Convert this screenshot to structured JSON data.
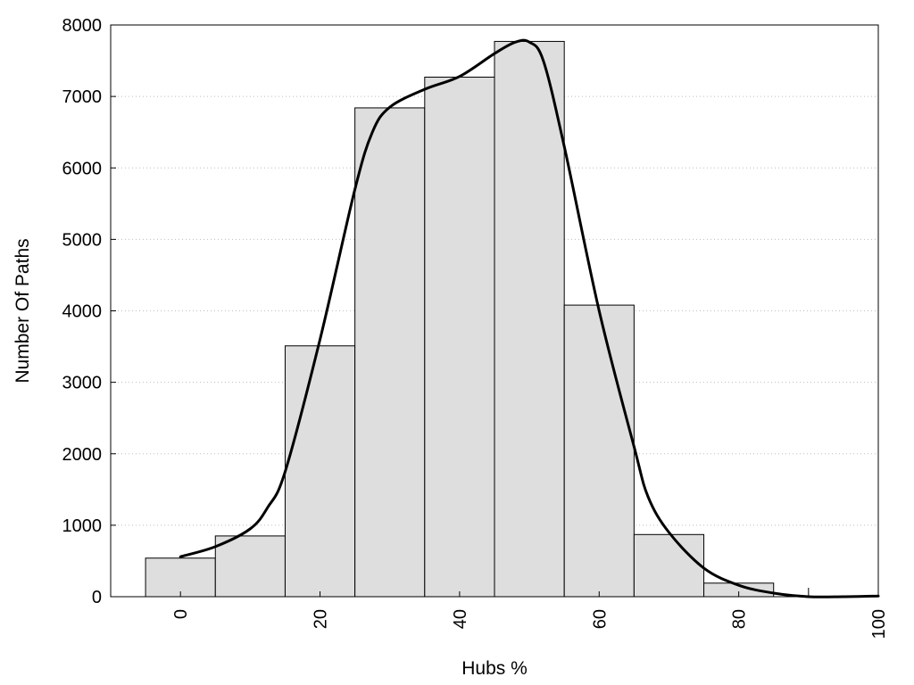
{
  "chart_data": {
    "type": "bar",
    "title": "",
    "xlabel": "Hubs %",
    "ylabel": "Number Of Paths",
    "xlim": [
      -10,
      100
    ],
    "ylim": [
      0,
      8000
    ],
    "x_ticks": [
      0,
      20,
      40,
      60,
      80,
      100
    ],
    "y_ticks": [
      0,
      1000,
      2000,
      3000,
      4000,
      5000,
      6000,
      7000,
      8000
    ],
    "grid": "horizontal dotted",
    "bar_width": 10,
    "categories": [
      0,
      10,
      20,
      30,
      40,
      50,
      60,
      70,
      80,
      90
    ],
    "values": [
      540,
      850,
      3510,
      6840,
      7270,
      7770,
      4080,
      870,
      190,
      0
    ],
    "density_curve": {
      "x": [
        0,
        5,
        10,
        12.5,
        15,
        20,
        25,
        27.5,
        30,
        35,
        40,
        45,
        48,
        50,
        52,
        55,
        60,
        65,
        67,
        70,
        75,
        80,
        85,
        90,
        95,
        100
      ],
      "y": [
        560,
        700,
        950,
        1250,
        1750,
        3600,
        5700,
        6500,
        6850,
        7100,
        7280,
        7600,
        7760,
        7760,
        7500,
        6300,
        4000,
        2100,
        1400,
        900,
        400,
        160,
        50,
        0,
        0,
        10
      ]
    },
    "colors": {
      "bar_fill": "#dedede",
      "bar_stroke": "#000000",
      "curve": "#000000",
      "grid": "#bdbdbd"
    }
  }
}
